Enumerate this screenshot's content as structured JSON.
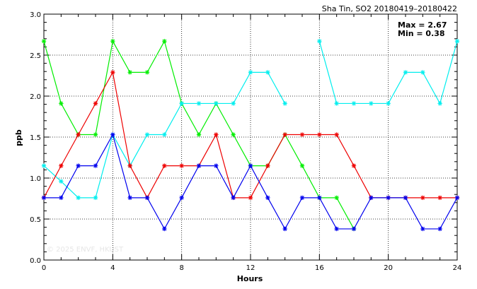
{
  "chart_data": {
    "type": "line",
    "title": "Sha Tin, SO2 20180419–20180422",
    "xlabel": "Hours",
    "ylabel": "ppb",
    "xlim": [
      0,
      24
    ],
    "ylim": [
      0.0,
      3.0
    ],
    "x_ticks": [
      0,
      4,
      8,
      12,
      16,
      20,
      24
    ],
    "x_tick_labels": [
      "0",
      "4",
      "8",
      "12",
      "16",
      "20",
      "24"
    ],
    "y_ticks": [
      0.0,
      0.5,
      1.0,
      1.5,
      2.0,
      2.5,
      3.0
    ],
    "y_tick_labels": [
      "0.0",
      "0.5",
      "1.0",
      "1.5",
      "2.0",
      "2.5",
      "3.0"
    ],
    "grid": true,
    "stats": {
      "max_label": "Max = 2.67",
      "min_label": "Min = 0.38"
    },
    "watermark": "© 2025  ENVF, HKUST",
    "x": [
      0,
      1,
      2,
      3,
      4,
      5,
      6,
      7,
      8,
      9,
      10,
      11,
      12,
      13,
      14,
      15,
      16,
      17,
      18,
      19,
      20,
      21,
      22,
      23,
      24
    ],
    "series": [
      {
        "color": "#00ee00",
        "marker": "asterisk",
        "values": [
          2.67,
          1.91,
          1.53,
          1.53,
          2.67,
          2.29,
          2.29,
          2.67,
          1.91,
          1.53,
          1.91,
          1.53,
          1.15,
          1.15,
          1.53,
          1.15,
          0.76,
          0.76,
          0.38,
          null,
          null,
          null,
          null,
          null,
          null
        ]
      },
      {
        "color": "#00eeee",
        "marker": "asterisk",
        "values": [
          1.15,
          0.96,
          0.76,
          0.76,
          1.53,
          1.15,
          1.53,
          1.53,
          1.91,
          1.91,
          1.91,
          1.91,
          2.29,
          2.29,
          1.91,
          null,
          2.67,
          1.91,
          1.91,
          1.91,
          1.91,
          2.29,
          2.29,
          1.91,
          2.67
        ]
      },
      {
        "color": "#ee0000",
        "marker": "asterisk",
        "values": [
          0.76,
          1.15,
          1.53,
          1.91,
          2.29,
          1.15,
          0.76,
          1.15,
          1.15,
          1.15,
          1.53,
          0.76,
          0.76,
          1.15,
          1.53,
          1.53,
          1.53,
          1.53,
          1.15,
          0.76,
          0.76,
          0.76,
          0.76,
          0.76,
          0.76
        ]
      },
      {
        "color": "#0000ee",
        "marker": "asterisk",
        "values": [
          0.76,
          0.76,
          1.15,
          1.15,
          1.53,
          0.76,
          0.76,
          0.38,
          0.76,
          1.15,
          1.15,
          0.76,
          1.15,
          0.76,
          0.38,
          0.76,
          0.76,
          0.38,
          0.38,
          0.76,
          0.76,
          0.76,
          0.38,
          0.38,
          0.76
        ]
      }
    ]
  }
}
